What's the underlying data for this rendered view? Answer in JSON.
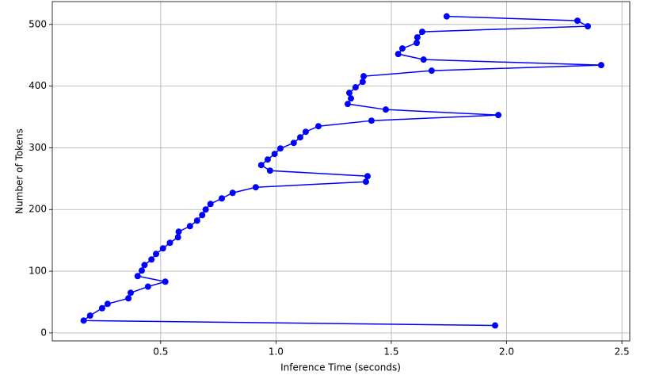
{
  "chart_data": {
    "type": "line",
    "x_label": "Inference Time (seconds)",
    "y_label": "Number of Tokens",
    "xlim": [
      0.03,
      2.534
    ],
    "ylim": [
      -13,
      537
    ],
    "xticks": [
      0.5,
      {
        "value": 1,
        "label": "1.0"
      },
      1.5,
      {
        "value": 2,
        "label": "2.0"
      },
      2.5
    ],
    "yticks": [
      0,
      100,
      200,
      300,
      400,
      500
    ],
    "grid": true,
    "series": [
      {
        "color": "#0000ff",
        "x": [
          1.95,
          0.166,
          0.194,
          0.246,
          0.27,
          0.36,
          0.37,
          0.445,
          0.52,
          0.4,
          0.418,
          0.43,
          0.46,
          0.48,
          0.51,
          0.54,
          0.575,
          0.578,
          0.627,
          0.658,
          0.68,
          0.695,
          0.716,
          0.765,
          0.812,
          0.912,
          1.39,
          1.397,
          0.974,
          0.936,
          0.964,
          0.994,
          1.019,
          1.077,
          1.105,
          1.129,
          1.184,
          1.414,
          1.964,
          1.476,
          1.311,
          1.325,
          1.318,
          1.345,
          1.376,
          1.38,
          1.675,
          2.41,
          1.64,
          1.53,
          1.548,
          1.61,
          1.613,
          1.634,
          2.352,
          2.307,
          1.74
        ],
        "values": [
          12,
          20,
          28,
          40,
          47,
          56,
          65,
          75,
          83,
          92,
          101,
          110,
          119,
          128,
          137,
          146,
          155,
          164,
          173,
          182,
          191,
          200,
          209,
          218,
          227,
          236,
          245,
          254,
          263,
          272,
          281,
          290,
          299,
          308,
          317,
          326,
          335,
          344,
          353,
          362,
          371,
          380,
          389,
          398,
          407,
          416,
          425,
          434,
          443,
          452,
          461,
          470,
          479,
          488,
          497,
          506,
          513
        ]
      }
    ]
  }
}
